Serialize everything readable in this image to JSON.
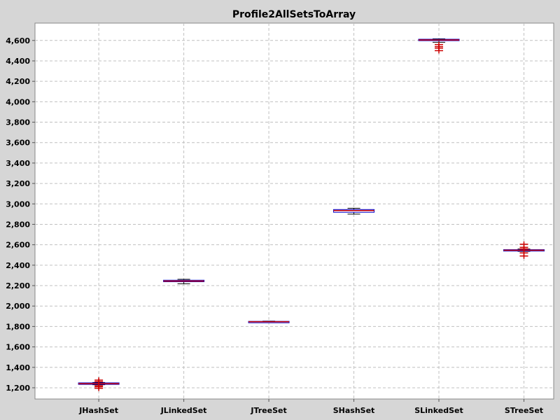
{
  "chart_data": {
    "type": "box",
    "title": "Profile2AllSetsToArray",
    "xlabel": "",
    "ylabel": "",
    "categories": [
      "JHashSet",
      "JLinkedSet",
      "JTreeSet",
      "SHashSet",
      "SLinkedSet",
      "STreeSet"
    ],
    "ylim": [
      1090,
      4770
    ],
    "yticks": [
      1200,
      1400,
      1600,
      1800,
      2000,
      2200,
      2400,
      2600,
      2800,
      3000,
      3200,
      3400,
      3600,
      3800,
      4000,
      4200,
      4400,
      4600
    ],
    "ytick_labels": [
      "1,200",
      "1,400",
      "1,600",
      "1,800",
      "2,000",
      "2,200",
      "2,400",
      "2,600",
      "2,800",
      "3,000",
      "3,200",
      "3,400",
      "3,600",
      "3,800",
      "4,000",
      "4,200",
      "4,400",
      "4,600"
    ],
    "grid": true,
    "boxes": [
      {
        "category": "JHashSet",
        "whisker_low": 1230,
        "q1": 1233,
        "median": 1240,
        "q3": 1248,
        "whisker_high": 1252,
        "outliers": [
          1195,
          1210,
          1220,
          1260,
          1275
        ]
      },
      {
        "category": "JLinkedSet",
        "whisker_low": 2218,
        "q1": 2238,
        "median": 2245,
        "q3": 2253,
        "whisker_high": 2262,
        "outliers": []
      },
      {
        "category": "JTreeSet",
        "whisker_low": 1838,
        "q1": 1842,
        "median": 1846,
        "q3": 1850,
        "whisker_high": 1852,
        "outliers": []
      },
      {
        "category": "SHashSet",
        "whisker_low": 2900,
        "q1": 2918,
        "median": 2935,
        "q3": 2945,
        "whisker_high": 2957,
        "outliers": []
      },
      {
        "category": "SLinkedSet",
        "whisker_low": 4582,
        "q1": 4598,
        "median": 4605,
        "q3": 4612,
        "whisker_high": 4616,
        "outliers": [
          4560,
          4540,
          4525,
          4500
        ]
      },
      {
        "category": "STreeSet",
        "whisker_low": 2535,
        "q1": 2541,
        "median": 2546,
        "q3": 2552,
        "whisker_high": 2558,
        "outliers": [
          2490,
          2520,
          2560,
          2575,
          2605
        ]
      }
    ],
    "colors": {
      "background": "#d6d6d6",
      "plot_background": "#ffffff",
      "gridline": "#c0c0c0",
      "box_outline": "#0000cc",
      "median": "#cc0000",
      "whisker": "#000000",
      "outlier": "#cc0000"
    }
  }
}
